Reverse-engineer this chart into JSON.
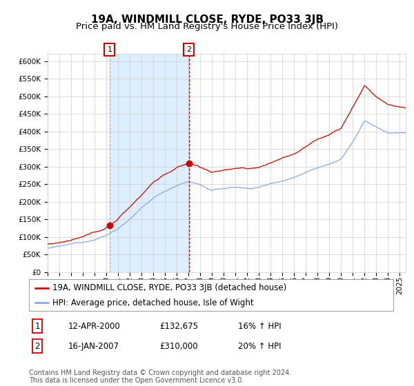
{
  "title": "19A, WINDMILL CLOSE, RYDE, PO33 3JB",
  "subtitle": "Price paid vs. HM Land Registry's House Price Index (HPI)",
  "ylim": [
    0,
    620000
  ],
  "yticks": [
    0,
    50000,
    100000,
    150000,
    200000,
    250000,
    300000,
    350000,
    400000,
    450000,
    500000,
    550000,
    600000
  ],
  "ytick_labels": [
    "£0",
    "£50K",
    "£100K",
    "£150K",
    "£200K",
    "£250K",
    "£300K",
    "£350K",
    "£400K",
    "£450K",
    "£500K",
    "£550K",
    "£600K"
  ],
  "x_start_year": 1995.0,
  "x_end_year": 2025.5,
  "sale1_date": 2000.28,
  "sale1_price": 132675,
  "sale1_label": "1",
  "sale2_date": 2007.04,
  "sale2_price": 310000,
  "sale2_label": "2",
  "red_line_color": "#cc0000",
  "blue_line_color": "#88aadd",
  "shade_color": "#ddeeff",
  "vline1_color": "#aaaaaa",
  "vline2_color": "#cc0000",
  "background_color": "#ffffff",
  "grid_color": "#cccccc",
  "legend_line1": "19A, WINDMILL CLOSE, RYDE, PO33 3JB (detached house)",
  "legend_line2": "HPI: Average price, detached house, Isle of Wight",
  "table_row1": [
    "1",
    "12-APR-2000",
    "£132,675",
    "16% ↑ HPI"
  ],
  "table_row2": [
    "2",
    "16-JAN-2007",
    "£310,000",
    "20% ↑ HPI"
  ],
  "footer": "Contains HM Land Registry data © Crown copyright and database right 2024.\nThis data is licensed under the Open Government Licence v3.0.",
  "title_fontsize": 11,
  "subtitle_fontsize": 9.5,
  "tick_fontsize": 7.5,
  "legend_fontsize": 8.5,
  "table_fontsize": 8.5,
  "footer_fontsize": 7
}
